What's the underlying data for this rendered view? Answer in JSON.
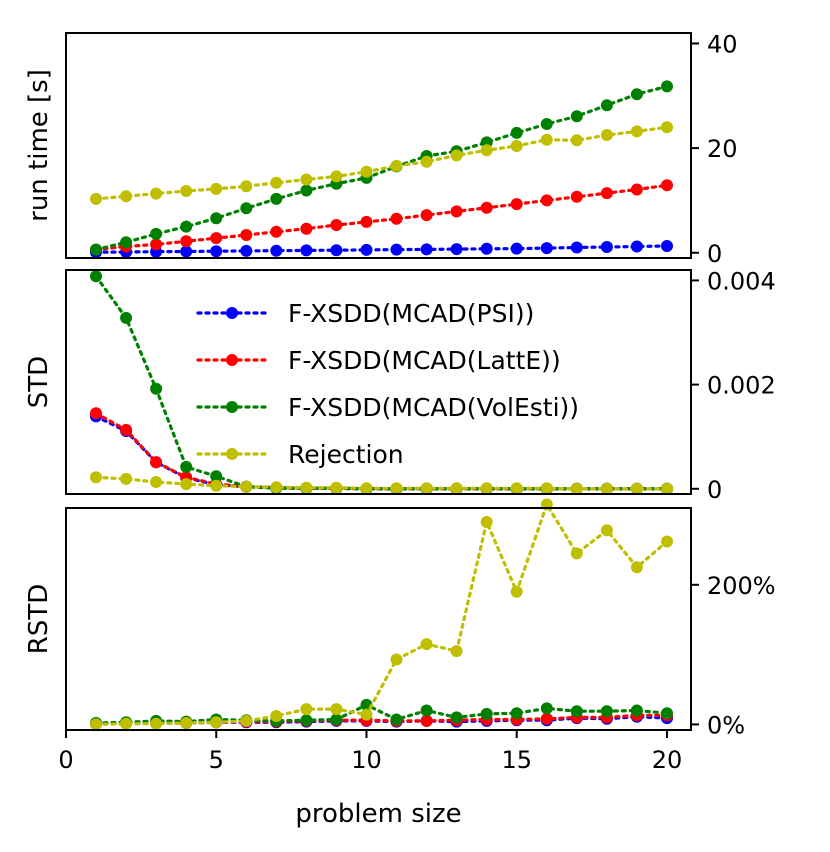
{
  "chart_data": [
    {
      "type": "line",
      "panel": "top",
      "ylabel": "run time [s]",
      "ylim": [
        -1,
        42
      ],
      "yticks": [
        0,
        20,
        40
      ],
      "ytick_labels": [
        "0",
        "20",
        "40"
      ],
      "x": [
        1,
        2,
        3,
        4,
        5,
        6,
        7,
        8,
        9,
        10,
        11,
        12,
        13,
        14,
        15,
        16,
        17,
        18,
        19,
        20
      ],
      "series": [
        {
          "name": "F-XSDD(MCAD(PSI))",
          "color": "#0000ff",
          "values": [
            0.1,
            0.15,
            0.2,
            0.25,
            0.3,
            0.35,
            0.4,
            0.45,
            0.5,
            0.55,
            0.6,
            0.65,
            0.7,
            0.75,
            0.8,
            0.9,
            1.0,
            1.1,
            1.2,
            1.3
          ]
        },
        {
          "name": "F-XSDD(MCAD(LattE))",
          "color": "#ff0000",
          "values": [
            0.6,
            1.2,
            1.6,
            2.2,
            2.8,
            3.4,
            4.0,
            4.6,
            5.3,
            5.9,
            6.5,
            7.2,
            7.9,
            8.6,
            9.3,
            10.0,
            10.7,
            11.4,
            12.1,
            12.9
          ]
        },
        {
          "name": "F-XSDD(MCAD(VolEsti))",
          "color": "#008000",
          "values": [
            0.6,
            2.0,
            3.6,
            5.0,
            6.6,
            8.5,
            10.3,
            11.9,
            13.2,
            14.3,
            16.5,
            18.5,
            19.4,
            21.1,
            22.9,
            24.6,
            26.1,
            28.2,
            30.3,
            31.8
          ]
        },
        {
          "name": "Rejection",
          "color": "#bfbf00",
          "values": [
            10.3,
            10.8,
            11.3,
            11.8,
            12.2,
            12.7,
            13.4,
            14.0,
            14.6,
            15.5,
            16.6,
            17.4,
            18.6,
            19.6,
            20.4,
            21.6,
            21.5,
            22.5,
            23.2,
            24.0
          ]
        }
      ]
    },
    {
      "type": "line",
      "panel": "middle",
      "ylabel": "STD",
      "ylim": [
        -0.0001,
        0.0042
      ],
      "yticks": [
        0,
        0.002,
        0.004
      ],
      "ytick_labels": [
        "0",
        "0.002",
        "0.004"
      ],
      "legend": {
        "placement": "center-right",
        "entries": [
          "F-XSDD(MCAD(PSI))",
          "F-XSDD(MCAD(LattE))",
          "F-XSDD(MCAD(VolEsti))",
          "Rejection"
        ]
      },
      "x": [
        1,
        2,
        3,
        4,
        5,
        6,
        7,
        8,
        9,
        10,
        11,
        12,
        13,
        14,
        15,
        16,
        17,
        18,
        19,
        20
      ],
      "series": [
        {
          "name": "F-XSDD(MCAD(PSI))",
          "color": "#0000ff",
          "values": [
            0.00139,
            0.00111,
            0.00051,
            0.00021,
            8e-05,
            4e-05,
            2e-05,
            1e-05,
            1e-05,
            0,
            0,
            0,
            0,
            0,
            0,
            0,
            0,
            0,
            0,
            0
          ]
        },
        {
          "name": "F-XSDD(MCAD(LattE))",
          "color": "#ff0000",
          "values": [
            0.00145,
            0.00113,
            0.00051,
            0.00022,
            9e-05,
            4e-05,
            2e-05,
            1e-05,
            1e-05,
            0,
            0,
            0,
            0,
            0,
            0,
            0,
            0,
            0,
            0,
            0
          ]
        },
        {
          "name": "F-XSDD(MCAD(VolEsti))",
          "color": "#008000",
          "values": [
            0.00408,
            0.00328,
            0.00192,
            0.00042,
            0.00024,
            4e-05,
            1e-05,
            1e-05,
            1e-05,
            0,
            0,
            0,
            0,
            0,
            0,
            0,
            0,
            0,
            0,
            0
          ]
        },
        {
          "name": "Rejection",
          "color": "#bfbf00",
          "values": [
            0.00022,
            0.00019,
            0.00013,
            9e-05,
            6e-05,
            4e-05,
            3e-05,
            2e-05,
            2e-05,
            1e-05,
            1e-05,
            1e-05,
            1e-05,
            1e-05,
            1e-05,
            1e-05,
            0,
            0,
            0,
            0
          ]
        }
      ]
    },
    {
      "type": "line",
      "panel": "bottom",
      "ylabel": "RSTD",
      "xlabel": "problem size",
      "ylim": [
        -8,
        310
      ],
      "yticks": [
        0,
        200
      ],
      "ytick_labels": [
        "0%",
        "200%"
      ],
      "xlim": [
        0,
        20.8
      ],
      "xticks": [
        0,
        5,
        10,
        15,
        20
      ],
      "xtick_labels": [
        "0",
        "5",
        "10",
        "15",
        "20"
      ],
      "x": [
        1,
        2,
        3,
        4,
        5,
        6,
        7,
        8,
        9,
        10,
        11,
        12,
        13,
        14,
        15,
        16,
        17,
        18,
        19,
        20
      ],
      "series": [
        {
          "name": "F-XSDD(MCAD(PSI))",
          "color": "#0000ff",
          "values": [
            1,
            2,
            2,
            2,
            3,
            3,
            3,
            4,
            5,
            5,
            4,
            5,
            4,
            5,
            6,
            6,
            9,
            8,
            11,
            9
          ]
        },
        {
          "name": "F-XSDD(MCAD(LattE))",
          "color": "#ff0000",
          "values": [
            1,
            2,
            2,
            2,
            3,
            4,
            4,
            5,
            6,
            6,
            5,
            5,
            6,
            7,
            7,
            8,
            10,
            10,
            13,
            13
          ]
        },
        {
          "name": "F-XSDD(MCAD(VolEsti))",
          "color": "#008000",
          "values": [
            2,
            3,
            5,
            4,
            7,
            6,
            5,
            6,
            7,
            28,
            7,
            20,
            10,
            15,
            16,
            23,
            19,
            19,
            20,
            16
          ]
        },
        {
          "name": "Rejection",
          "color": "#bfbf00",
          "values": [
            0,
            1,
            1,
            2,
            3,
            5,
            12,
            22,
            22,
            14,
            93,
            115,
            105,
            290,
            190,
            315,
            245,
            278,
            225,
            262
          ]
        }
      ]
    }
  ]
}
